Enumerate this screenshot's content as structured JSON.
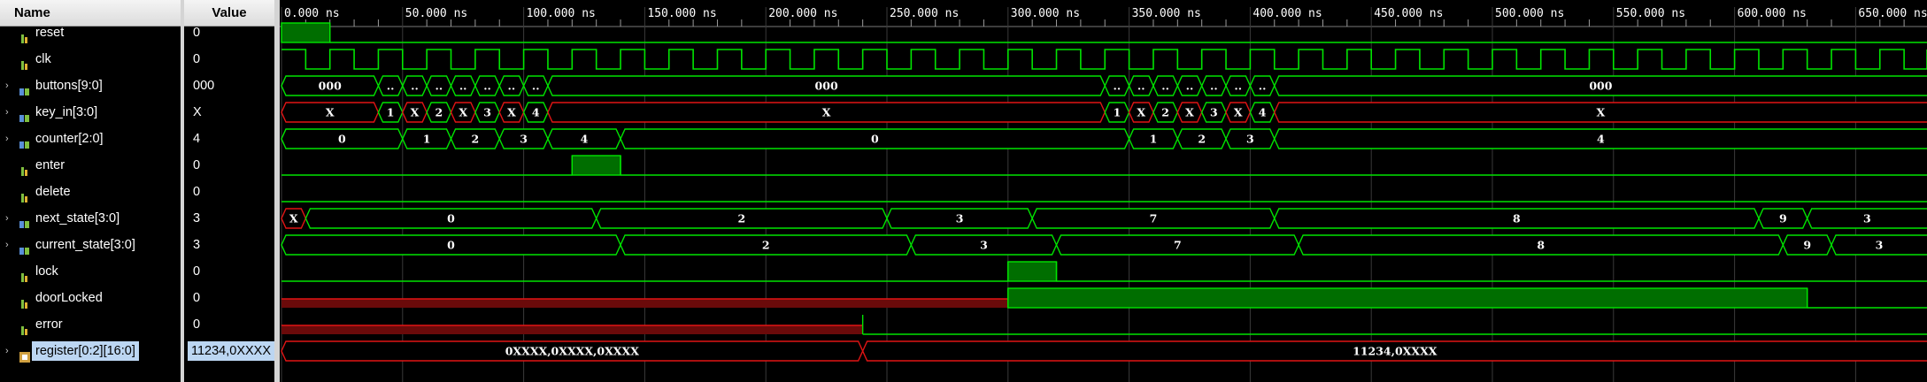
{
  "headers": {
    "name": "Name",
    "value": "Value"
  },
  "colors": {
    "wave": "#00e400",
    "wave_dim": "#00b000",
    "fill": "#006e00",
    "red": "#e11414",
    "red_fill": "#6a0a0a",
    "grid": "#3a3a3a",
    "selected": "#bcd6f2"
  },
  "timescale": {
    "unit_ns_visible": [
      0,
      680
    ],
    "tick_labels": [
      "0.000 ns",
      "50.000 ns",
      "100.000 ns",
      "150.000 ns",
      "200.000 ns",
      "250.000 ns",
      "300.000 ns",
      "350.000 ns",
      "400.000 ns",
      "450.000 ns",
      "500.000 ns",
      "550.000 ns",
      "600.000 ns",
      "650.000 ns"
    ]
  },
  "signals": [
    {
      "name": "reset",
      "value": "0",
      "kind": "bit",
      "expandable": false,
      "icon": "bit-signal-icon",
      "wave": [
        [
          0,
          "1"
        ],
        [
          20,
          "0"
        ]
      ]
    },
    {
      "name": "clk",
      "value": "0",
      "kind": "clock",
      "expandable": false,
      "icon": "bit-signal-icon",
      "period_ns": 20,
      "start_level": "1"
    },
    {
      "name": "buttons[9:0]",
      "value": "000",
      "kind": "bus",
      "expandable": true,
      "icon": "bus-signal-icon",
      "segments": [
        [
          0,
          "000"
        ],
        [
          40,
          ".."
        ],
        [
          50,
          ".."
        ],
        [
          60,
          ".."
        ],
        [
          70,
          ".."
        ],
        [
          80,
          ".."
        ],
        [
          90,
          ".."
        ],
        [
          100,
          ".."
        ],
        [
          110,
          "000"
        ],
        [
          340,
          ".."
        ],
        [
          350,
          ".."
        ],
        [
          360,
          ".."
        ],
        [
          370,
          ".."
        ],
        [
          380,
          ".."
        ],
        [
          390,
          ".."
        ],
        [
          400,
          ".."
        ],
        [
          410,
          "000"
        ]
      ]
    },
    {
      "name": "key_in[3:0]",
      "value": "X",
      "kind": "bus",
      "expandable": true,
      "icon": "bus-signal-icon",
      "segments": [
        [
          0,
          "X",
          "x"
        ],
        [
          40,
          "1"
        ],
        [
          50,
          "X",
          "x"
        ],
        [
          60,
          "2"
        ],
        [
          70,
          "X",
          "x"
        ],
        [
          80,
          "3"
        ],
        [
          90,
          "X",
          "x"
        ],
        [
          100,
          "4"
        ],
        [
          110,
          "X",
          "x"
        ],
        [
          340,
          "1"
        ],
        [
          350,
          "X",
          "x"
        ],
        [
          360,
          "2"
        ],
        [
          370,
          "X",
          "x"
        ],
        [
          380,
          "3"
        ],
        [
          390,
          "X",
          "x"
        ],
        [
          400,
          "4"
        ],
        [
          410,
          "X",
          "x"
        ]
      ]
    },
    {
      "name": "counter[2:0]",
      "value": "4",
      "kind": "bus",
      "expandable": true,
      "icon": "bus-signal-icon",
      "segments": [
        [
          0,
          "0"
        ],
        [
          50,
          "1"
        ],
        [
          70,
          "2"
        ],
        [
          90,
          "3"
        ],
        [
          110,
          "4"
        ],
        [
          140,
          "0"
        ],
        [
          350,
          "1"
        ],
        [
          370,
          "2"
        ],
        [
          390,
          "3"
        ],
        [
          410,
          "4"
        ]
      ]
    },
    {
      "name": "enter",
      "value": "0",
      "kind": "bit",
      "expandable": false,
      "icon": "bit-signal-icon",
      "wave": [
        [
          0,
          "0"
        ],
        [
          120,
          "1"
        ],
        [
          140,
          "0"
        ]
      ]
    },
    {
      "name": "delete",
      "value": "0",
      "kind": "bit",
      "expandable": false,
      "icon": "bit-signal-icon",
      "wave": [
        [
          0,
          "0"
        ]
      ]
    },
    {
      "name": "next_state[3:0]",
      "value": "3",
      "kind": "bus",
      "expandable": true,
      "icon": "bus-signal-icon",
      "segments": [
        [
          0,
          "X",
          "x"
        ],
        [
          10,
          "0"
        ],
        [
          130,
          "2"
        ],
        [
          250,
          "3"
        ],
        [
          310,
          "7"
        ],
        [
          410,
          "8"
        ],
        [
          610,
          "9"
        ],
        [
          630,
          "3"
        ]
      ]
    },
    {
      "name": "current_state[3:0]",
      "value": "3",
      "kind": "bus",
      "expandable": true,
      "icon": "bus-signal-icon",
      "segments": [
        [
          0,
          "0"
        ],
        [
          140,
          "2"
        ],
        [
          260,
          "3"
        ],
        [
          320,
          "7"
        ],
        [
          420,
          "8"
        ],
        [
          620,
          "9"
        ],
        [
          640,
          "3"
        ]
      ]
    },
    {
      "name": "lock",
      "value": "0",
      "kind": "bit",
      "expandable": false,
      "icon": "bit-signal-icon",
      "wave": [
        [
          0,
          "0"
        ],
        [
          300,
          "1"
        ],
        [
          320,
          "0"
        ]
      ]
    },
    {
      "name": "doorLocked",
      "value": "0",
      "kind": "bit",
      "expandable": false,
      "icon": "bit-signal-icon",
      "wave": [
        [
          0,
          "X"
        ],
        [
          300,
          "1"
        ],
        [
          630,
          "0"
        ]
      ]
    },
    {
      "name": "error",
      "value": "0",
      "kind": "bit",
      "expandable": false,
      "icon": "bit-signal-icon",
      "wave": [
        [
          0,
          "X"
        ],
        [
          240,
          "0"
        ]
      ]
    },
    {
      "name": "register[0:2][16:0]",
      "value": "11234,0XXXX",
      "kind": "bus",
      "expandable": true,
      "icon": "array-signal-icon",
      "selected": true,
      "segments": [
        [
          0,
          "0XXXX,0XXXX,0XXXX",
          "x"
        ],
        [
          240,
          "11234,0XXXX",
          "x"
        ]
      ]
    }
  ]
}
